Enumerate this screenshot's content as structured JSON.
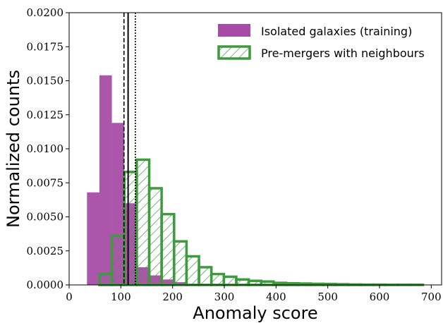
{
  "chart_data": {
    "type": "bar",
    "xlabel": "Anomaly score",
    "ylabel": "Normalized counts",
    "xlim": [
      0,
      720
    ],
    "ylim": [
      0,
      0.02
    ],
    "x_ticks": [
      0,
      100,
      200,
      300,
      400,
      500,
      600,
      700
    ],
    "y_ticks": [
      0.0,
      0.0025,
      0.005,
      0.0075,
      0.01,
      0.0125,
      0.015,
      0.0175,
      0.02
    ],
    "y_tick_labels": [
      "0.0000",
      "0.0025",
      "0.0050",
      "0.0075",
      "0.0100",
      "0.0125",
      "0.0150",
      "0.0175",
      "0.0200"
    ],
    "grid": false,
    "legend_position": "top-right",
    "series": [
      {
        "name": "Isolated galaxies (training)",
        "style": "filled",
        "color": "#a64ca6",
        "bins": [
          {
            "x0": 34.5,
            "x1": 58.6,
            "value": 0.0068
          },
          {
            "x0": 58.6,
            "x1": 82.6,
            "value": 0.0154
          },
          {
            "x0": 82.6,
            "x1": 106.7,
            "value": 0.0119
          },
          {
            "x0": 106.7,
            "x1": 130.7,
            "value": 0.006
          },
          {
            "x0": 130.7,
            "x1": 154.8,
            "value": 0.0013
          },
          {
            "x0": 154.8,
            "x1": 178.8,
            "value": 0.0007
          },
          {
            "x0": 178.8,
            "x1": 202.9,
            "value": 0.0004
          },
          {
            "x0": 202.9,
            "x1": 226.9,
            "value": 0.0002
          }
        ]
      },
      {
        "name": "Pre-mergers with neighbours",
        "style": "hatched",
        "color": "#3d9a3d",
        "bins": [
          {
            "x0": 58.6,
            "x1": 82.6,
            "value": 0.0008
          },
          {
            "x0": 82.6,
            "x1": 106.7,
            "value": 0.0036
          },
          {
            "x0": 106.7,
            "x1": 130.7,
            "value": 0.0083
          },
          {
            "x0": 130.7,
            "x1": 154.8,
            "value": 0.0092
          },
          {
            "x0": 154.8,
            "x1": 178.8,
            "value": 0.0071
          },
          {
            "x0": 178.8,
            "x1": 202.9,
            "value": 0.0052
          },
          {
            "x0": 202.9,
            "x1": 226.9,
            "value": 0.0032
          },
          {
            "x0": 226.9,
            "x1": 251.0,
            "value": 0.0021
          },
          {
            "x0": 251.0,
            "x1": 275.0,
            "value": 0.0013
          },
          {
            "x0": 275.0,
            "x1": 299.1,
            "value": 0.0008
          },
          {
            "x0": 299.1,
            "x1": 323.1,
            "value": 0.0006
          },
          {
            "x0": 323.1,
            "x1": 347.2,
            "value": 0.0004
          },
          {
            "x0": 347.2,
            "x1": 371.2,
            "value": 0.0003
          },
          {
            "x0": 371.2,
            "x1": 395.3,
            "value": 0.00025
          },
          {
            "x0": 395.3,
            "x1": 419.3,
            "value": 0.00015
          },
          {
            "x0": 419.3,
            "x1": 443.4,
            "value": 0.00012
          },
          {
            "x0": 443.4,
            "x1": 467.4,
            "value": 0.0001
          },
          {
            "x0": 467.4,
            "x1": 491.5,
            "value": 8e-05
          },
          {
            "x0": 491.5,
            "x1": 515.5,
            "value": 7e-05
          },
          {
            "x0": 515.5,
            "x1": 539.6,
            "value": 5e-05
          },
          {
            "x0": 539.6,
            "x1": 563.6,
            "value": 3e-05
          },
          {
            "x0": 563.6,
            "x1": 587.7,
            "value": 2e-05
          },
          {
            "x0": 587.7,
            "x1": 611.7,
            "value": 2e-05
          },
          {
            "x0": 611.7,
            "x1": 635.8,
            "value": 1e-05
          },
          {
            "x0": 635.8,
            "x1": 659.8,
            "value": 1e-05
          },
          {
            "x0": 659.8,
            "x1": 683.9,
            "value": 1e-05
          }
        ]
      }
    ],
    "vertical_lines": [
      {
        "x": 106,
        "style": "dashed",
        "color": "#000000"
      },
      {
        "x": 114,
        "style": "solid",
        "color": "#000000"
      },
      {
        "x": 128,
        "style": "dotted",
        "color": "#000000"
      }
    ]
  }
}
